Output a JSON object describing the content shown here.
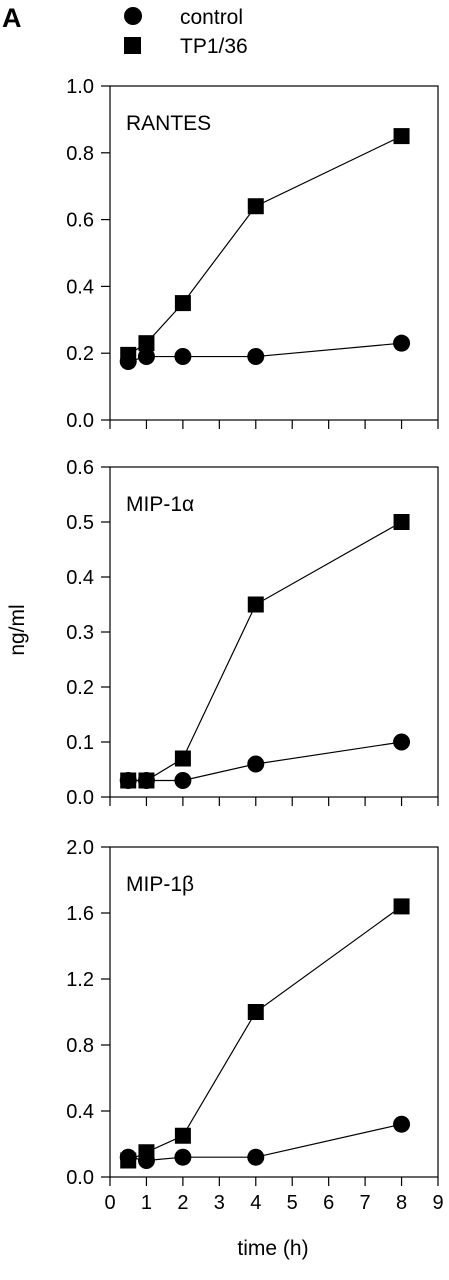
{
  "figure": {
    "panel_letter": "A",
    "legend": [
      {
        "label": "control",
        "marker": "circle"
      },
      {
        "label": "TP1/36",
        "marker": "square"
      }
    ],
    "ylabel": "ng/ml",
    "xlabel": "time (h)"
  },
  "chart_data": [
    {
      "type": "line",
      "title": "RANTES",
      "x": [
        0.5,
        1,
        2,
        4,
        8
      ],
      "series": [
        {
          "name": "control",
          "values": [
            0.175,
            0.19,
            0.19,
            0.19,
            0.23
          ]
        },
        {
          "name": "TP1/36",
          "values": [
            0.195,
            0.23,
            0.35,
            0.64,
            0.85
          ]
        }
      ],
      "xlim": [
        0,
        9
      ],
      "ylim": [
        0,
        1.0
      ],
      "yticks": [
        "0.0",
        "0.2",
        "0.4",
        "0.6",
        "0.8",
        "1.0"
      ],
      "xticks": [],
      "grid": false
    },
    {
      "type": "line",
      "title": "MIP-1α",
      "x": [
        0.5,
        1,
        2,
        4,
        8
      ],
      "series": [
        {
          "name": "control",
          "values": [
            0.03,
            0.03,
            0.03,
            0.06,
            0.1
          ]
        },
        {
          "name": "TP1/36",
          "values": [
            0.03,
            0.03,
            0.07,
            0.35,
            0.5
          ]
        }
      ],
      "xlim": [
        0,
        9
      ],
      "ylim": [
        0,
        0.6
      ],
      "yticks": [
        "0.0",
        "0.1",
        "0.2",
        "0.3",
        "0.4",
        "0.5",
        "0.6"
      ],
      "xticks": [],
      "grid": false
    },
    {
      "type": "line",
      "title": "MIP-1β",
      "x": [
        0.5,
        1,
        2,
        4,
        8
      ],
      "series": [
        {
          "name": "control",
          "values": [
            0.12,
            0.1,
            0.12,
            0.12,
            0.32
          ]
        },
        {
          "name": "TP1/36",
          "values": [
            0.1,
            0.15,
            0.25,
            1.0,
            1.64
          ]
        }
      ],
      "xlim": [
        0,
        9
      ],
      "ylim": [
        0,
        2.0
      ],
      "yticks": [
        "0.0",
        "0.4",
        "0.8",
        "1.2",
        "1.6",
        "2.0"
      ],
      "xticks": [
        "0",
        "1",
        "2",
        "3",
        "4",
        "5",
        "6",
        "7",
        "8",
        "9"
      ],
      "grid": false
    }
  ]
}
